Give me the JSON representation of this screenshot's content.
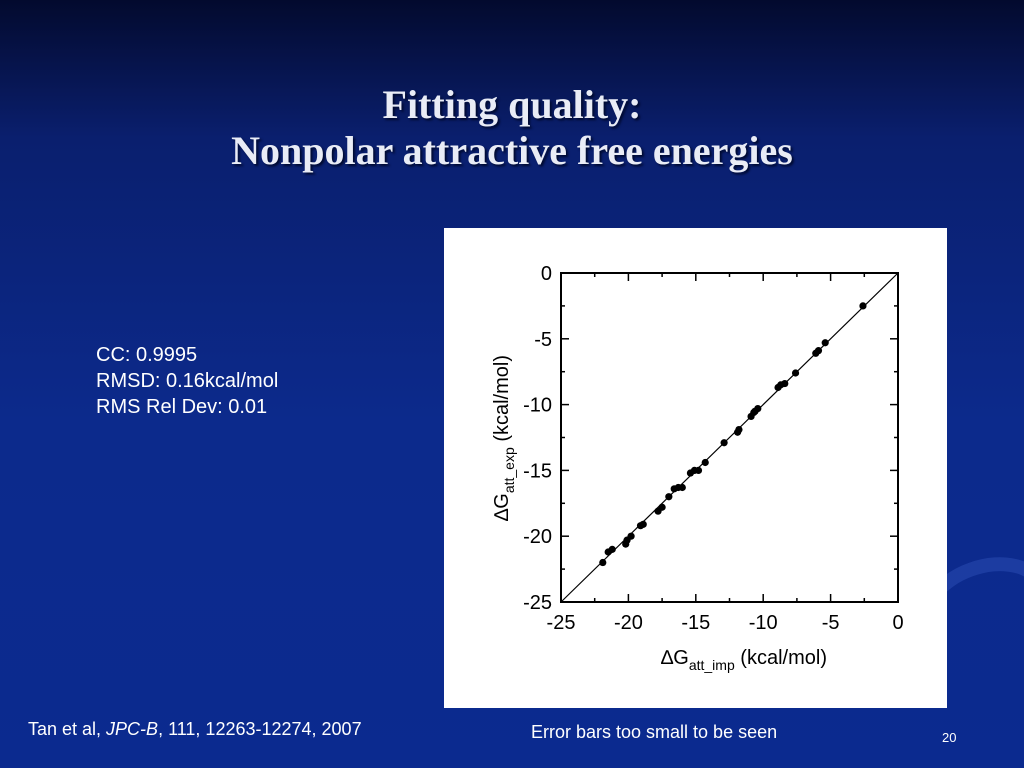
{
  "title": {
    "line1": "Fitting quality:",
    "line2": "Nonpolar attractive free energies"
  },
  "stats": {
    "cc": "CC: 0.9995",
    "rmsd": "RMSD: 0.16kcal/mol",
    "rms_rel_dev": "RMS Rel Dev: 0.01"
  },
  "citation": {
    "prefix": "Tan et al, ",
    "journal": "JPC-B",
    "suffix": ", 111, 12263-12274, 2007"
  },
  "note": "Error bars too small to be seen",
  "page_number": "20",
  "colors": {
    "background_top": "#030a2e",
    "background_main": "#0c2a8c",
    "panel": "#ffffff",
    "marker": "#000000"
  },
  "chart_data": {
    "type": "scatter",
    "title": "",
    "xlabel": {
      "delta": "∆",
      "base": "G",
      "sub": "att_imp",
      "unit": " (kcal/mol)"
    },
    "ylabel": {
      "delta": "∆",
      "base": "G",
      "sub": "att_exp",
      "unit": " (kcal/mol)"
    },
    "xlim": [
      -25,
      0
    ],
    "ylim": [
      -25,
      0
    ],
    "xticks": [
      -25,
      -20,
      -15,
      -10,
      -5,
      0
    ],
    "yticks": [
      -25,
      -20,
      -15,
      -10,
      -5,
      0
    ],
    "xtick_labels": [
      "-25",
      "-20",
      "-15",
      "-10",
      "-5",
      "0"
    ],
    "ytick_labels": [
      "-25",
      "-20",
      "-15",
      "-10",
      "-5",
      "0"
    ],
    "grid": false,
    "reference_line": {
      "x": [
        -25,
        0
      ],
      "y": [
        -25,
        0
      ]
    },
    "series": [
      {
        "points": [
          [
            -21.9,
            -22.0
          ],
          [
            -21.5,
            -21.2
          ],
          [
            -21.2,
            -21.0
          ],
          [
            -20.2,
            -20.6
          ],
          [
            -20.1,
            -20.3
          ],
          [
            -19.8,
            -20.0
          ],
          [
            -19.1,
            -19.2
          ],
          [
            -18.9,
            -19.1
          ],
          [
            -17.8,
            -18.1
          ],
          [
            -17.5,
            -17.8
          ],
          [
            -17.0,
            -17.0
          ],
          [
            -16.6,
            -16.4
          ],
          [
            -16.3,
            -16.3
          ],
          [
            -16.0,
            -16.3
          ],
          [
            -15.4,
            -15.2
          ],
          [
            -15.1,
            -15.0
          ],
          [
            -14.8,
            -15.0
          ],
          [
            -14.3,
            -14.4
          ],
          [
            -12.9,
            -12.9
          ],
          [
            -11.9,
            -12.1
          ],
          [
            -11.8,
            -11.9
          ],
          [
            -10.9,
            -10.9
          ],
          [
            -10.7,
            -10.6
          ],
          [
            -10.6,
            -10.5
          ],
          [
            -10.4,
            -10.3
          ],
          [
            -8.9,
            -8.7
          ],
          [
            -8.7,
            -8.5
          ],
          [
            -8.4,
            -8.4
          ],
          [
            -7.6,
            -7.6
          ],
          [
            -6.1,
            -6.1
          ],
          [
            -5.9,
            -5.9
          ],
          [
            -5.4,
            -5.3
          ],
          [
            -2.6,
            -2.5
          ]
        ]
      }
    ]
  }
}
